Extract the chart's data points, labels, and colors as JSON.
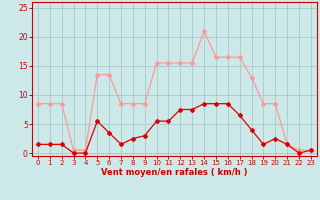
{
  "hours": [
    0,
    1,
    2,
    3,
    4,
    5,
    6,
    7,
    8,
    9,
    10,
    11,
    12,
    13,
    14,
    15,
    16,
    17,
    18,
    19,
    20,
    21,
    22,
    23
  ],
  "rafales": [
    8.5,
    8.5,
    8.5,
    0.5,
    0.5,
    13.5,
    13.5,
    8.5,
    8.5,
    8.5,
    15.5,
    15.5,
    15.5,
    15.5,
    21.0,
    16.5,
    16.5,
    16.5,
    13.0,
    8.5,
    8.5,
    1.5,
    0.5,
    0.5
  ],
  "moyen": [
    1.5,
    1.5,
    1.5,
    0.0,
    0.0,
    5.5,
    3.5,
    1.5,
    2.5,
    3.0,
    5.5,
    5.5,
    7.5,
    7.5,
    8.5,
    8.5,
    8.5,
    6.5,
    4.0,
    1.5,
    2.5,
    1.5,
    0.0,
    0.5
  ],
  "bg_color": "#cde8e8",
  "grid_color": "#a8c8c8",
  "line_color_rafales": "#ff9999",
  "line_color_moyen": "#dd0000",
  "xlabel": "Vent moyen/en rafales ( km/h )",
  "ylim": [
    -0.5,
    26
  ],
  "yticks": [
    0,
    5,
    10,
    15,
    20,
    25
  ],
  "xlim": [
    -0.5,
    23.5
  ],
  "tick_color": "#cc0000",
  "spine_color": "#cc0000"
}
